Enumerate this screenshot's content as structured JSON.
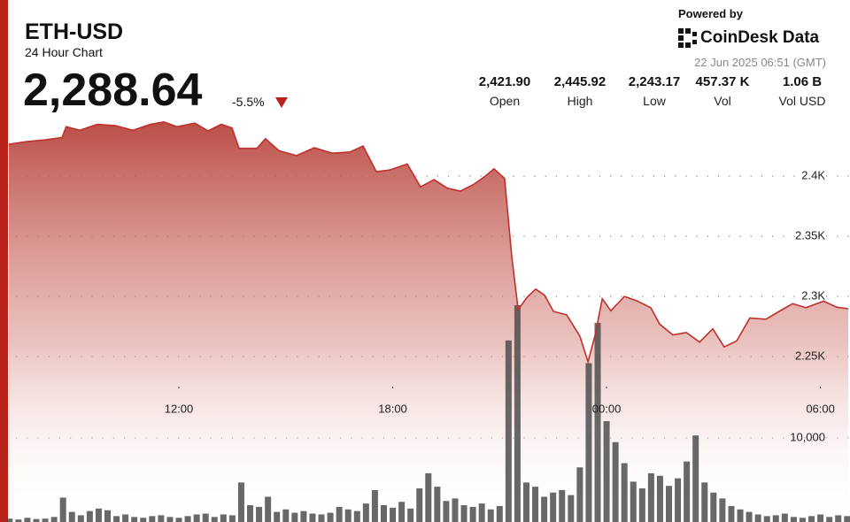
{
  "header": {
    "symbol": "ETH-USD",
    "subtitle": "24 Hour Chart",
    "price": "2,288.64",
    "change": "-5.5%",
    "powered_by": "Powered by",
    "brand": "CoinDesk Data",
    "timestamp": "22 Jun 2025 06:51 (GMT)",
    "stats": [
      {
        "value": "2,421.90",
        "label": "Open"
      },
      {
        "value": "2,445.92",
        "label": "High"
      },
      {
        "value": "2,243.17",
        "label": "Low"
      },
      {
        "value": "457.37 K",
        "label": "Vol"
      },
      {
        "value": "1.06 B",
        "label": "Vol USD"
      }
    ]
  },
  "chart_data": {
    "type": "area",
    "grid": true,
    "xlim": [
      7.23,
      30.83
    ],
    "xticks": [
      {
        "value": 12,
        "label": "12:00"
      },
      {
        "value": 18,
        "label": "18:00"
      },
      {
        "value": 24,
        "label": "00:00"
      },
      {
        "value": 30,
        "label": "06:00"
      }
    ],
    "ylim": [
      2230,
      2450
    ],
    "yticks": [
      {
        "value": 2250,
        "label": "2.25K"
      },
      {
        "value": 2300,
        "label": "2.3K"
      },
      {
        "value": 2350,
        "label": "2.35K"
      },
      {
        "value": 2400,
        "label": "2.4K"
      }
    ],
    "y2lim": [
      0,
      30000
    ],
    "y2ticks": [
      {
        "value": 10000,
        "label": "10,000"
      }
    ],
    "series": [
      {
        "color": "#c0302a",
        "x": [
          7.23,
          7.73,
          8.22,
          8.72,
          8.84,
          9.22,
          9.71,
          10.21,
          10.71,
          11.2,
          11.58,
          11.95,
          12.45,
          12.82,
          13.19,
          13.49,
          13.69,
          14.19,
          14.43,
          14.81,
          15.3,
          15.8,
          16.3,
          16.8,
          17.17,
          17.54,
          17.91,
          18.41,
          18.78,
          19.16,
          19.53,
          19.9,
          20.27,
          20.6,
          20.84,
          21.14,
          21.34,
          21.52,
          21.76,
          22.01,
          22.26,
          22.51,
          22.88,
          23.25,
          23.48,
          23.68,
          23.88,
          24.12,
          24.5,
          24.87,
          25.24,
          25.49,
          25.86,
          26.24,
          26.61,
          26.98,
          27.3,
          27.65,
          28.02,
          28.47,
          28.84,
          29.22,
          29.59,
          30.09,
          30.46,
          30.78
        ],
        "values": [
          2426.5,
          2428.7,
          2430,
          2432,
          2441,
          2438,
          2443,
          2442,
          2438,
          2443,
          2445,
          2441,
          2444,
          2437.5,
          2443,
          2440,
          2423,
          2423,
          2431,
          2421,
          2417,
          2423.5,
          2419,
          2420,
          2425,
          2403.7,
          2405,
          2410,
          2391,
          2397,
          2390,
          2387.5,
          2393,
          2400,
          2406,
          2398,
          2333,
          2289,
          2299,
          2306,
          2301,
          2287.5,
          2284.6,
          2267,
          2245.6,
          2268,
          2298,
          2288,
          2300,
          2296,
          2290.6,
          2277,
          2268,
          2270,
          2262,
          2273,
          2258,
          2263,
          2282,
          2281,
          2287.5,
          2294,
          2290.6,
          2296,
          2291,
          2289.7
        ]
      },
      {
        "type": "bar",
        "axis": "y2",
        "color": "#4d4d4d",
        "x": [
          7.25,
          7.5,
          7.75,
          8,
          8.25,
          8.5,
          8.75,
          9,
          9.25,
          9.5,
          9.75,
          10,
          10.25,
          10.5,
          10.75,
          11,
          11.25,
          11.5,
          11.75,
          12,
          12.25,
          12.5,
          12.75,
          13,
          13.25,
          13.5,
          13.75,
          14,
          14.25,
          14.5,
          14.75,
          15,
          15.25,
          15.5,
          15.75,
          16,
          16.25,
          16.5,
          16.75,
          17,
          17.25,
          17.5,
          17.75,
          18,
          18.25,
          18.5,
          18.75,
          19,
          19.25,
          19.5,
          19.75,
          20,
          20.25,
          20.5,
          20.75,
          21,
          21.25,
          21.5,
          21.75,
          22,
          22.25,
          22.5,
          22.75,
          23,
          23.25,
          23.5,
          23.75,
          24,
          24.25,
          24.5,
          24.75,
          25,
          25.25,
          25.5,
          25.75,
          26,
          26.25,
          26.5,
          26.75,
          27,
          27.25,
          27.5,
          27.75,
          28,
          28.25,
          28.5,
          28.75,
          29,
          29.25,
          29.5,
          29.75,
          30,
          30.25,
          30.5,
          30.75
        ],
        "values": [
          400,
          300,
          500,
          350,
          400,
          600,
          2900,
          1200,
          800,
          1300,
          1600,
          1400,
          700,
          900,
          600,
          500,
          700,
          800,
          600,
          500,
          700,
          900,
          1000,
          600,
          900,
          800,
          4700,
          2000,
          1800,
          3000,
          1200,
          1500,
          1100,
          1300,
          1000,
          900,
          1100,
          1800,
          1500,
          1300,
          2200,
          3800,
          2000,
          1700,
          2400,
          1600,
          4000,
          5800,
          4200,
          2500,
          2800,
          2000,
          1800,
          2200,
          1500,
          1900,
          21600,
          25800,
          4700,
          4200,
          3000,
          3500,
          3800,
          3200,
          6500,
          18900,
          23700,
          12000,
          9500,
          7000,
          4800,
          4000,
          5800,
          5500,
          4300,
          5200,
          7200,
          10300,
          4700,
          3500,
          2800,
          1900,
          1500,
          1200,
          900,
          700,
          800,
          1000,
          600,
          500,
          700,
          900,
          600,
          800,
          700
        ]
      }
    ]
  }
}
